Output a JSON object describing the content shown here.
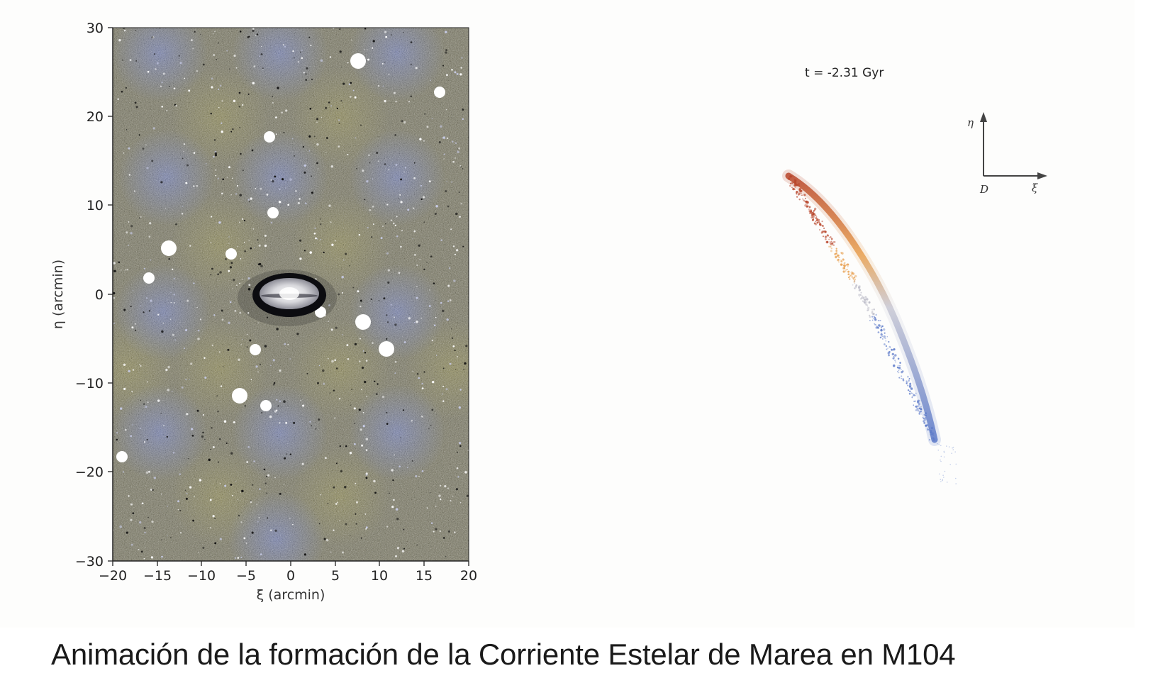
{
  "caption": "Animación de la formación de la Corriente Estelar de Marea en M104",
  "left_panel": {
    "xlabel": "ξ (arcmin)",
    "ylabel": "η (arcmin)",
    "x_ticks": [
      "−20",
      "−15",
      "−10",
      "−5",
      "0",
      "5",
      "10",
      "15",
      "20"
    ],
    "y_ticks": [
      "30",
      "20",
      "10",
      "0",
      "−10",
      "−20",
      "−30"
    ],
    "xlim": [
      -20,
      20
    ],
    "ylim": [
      -30,
      30
    ]
  },
  "right_panel": {
    "time_label": "t = -2.31 Gyr",
    "compass": {
      "up_label": "η",
      "right_label": "ξ",
      "origin_label": "D"
    },
    "stream_colors": [
      "#b8452a",
      "#e8a050",
      "#b9b9c9",
      "#5a78c8"
    ]
  }
}
